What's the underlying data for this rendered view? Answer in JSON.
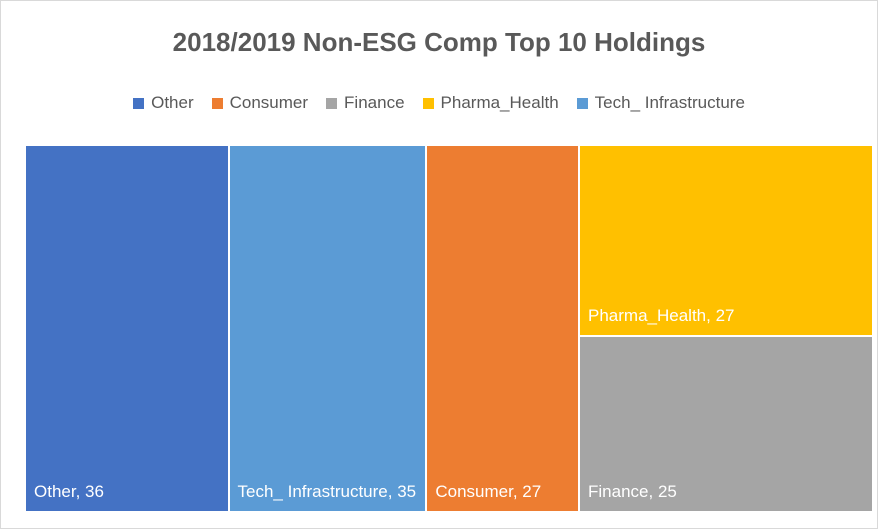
{
  "chart_data": {
    "type": "treemap",
    "title": "2018/2019 Non-ESG Comp Top 10 Holdings",
    "categories": [
      "Other",
      "Consumer",
      "Finance",
      "Pharma_Health",
      "Tech_ Infrastructure"
    ],
    "values": [
      36,
      27,
      25,
      27,
      35
    ],
    "value_labels": [
      "Other, 36",
      "Consumer, 27",
      "Finance, 25",
      "Pharma_Health, 27",
      "Tech_ Infrastructure, 35"
    ],
    "colors": [
      "#4472c4",
      "#ed7d31",
      "#a5a5a5",
      "#ffc000",
      "#5b9bd5"
    ],
    "legend": "top"
  }
}
